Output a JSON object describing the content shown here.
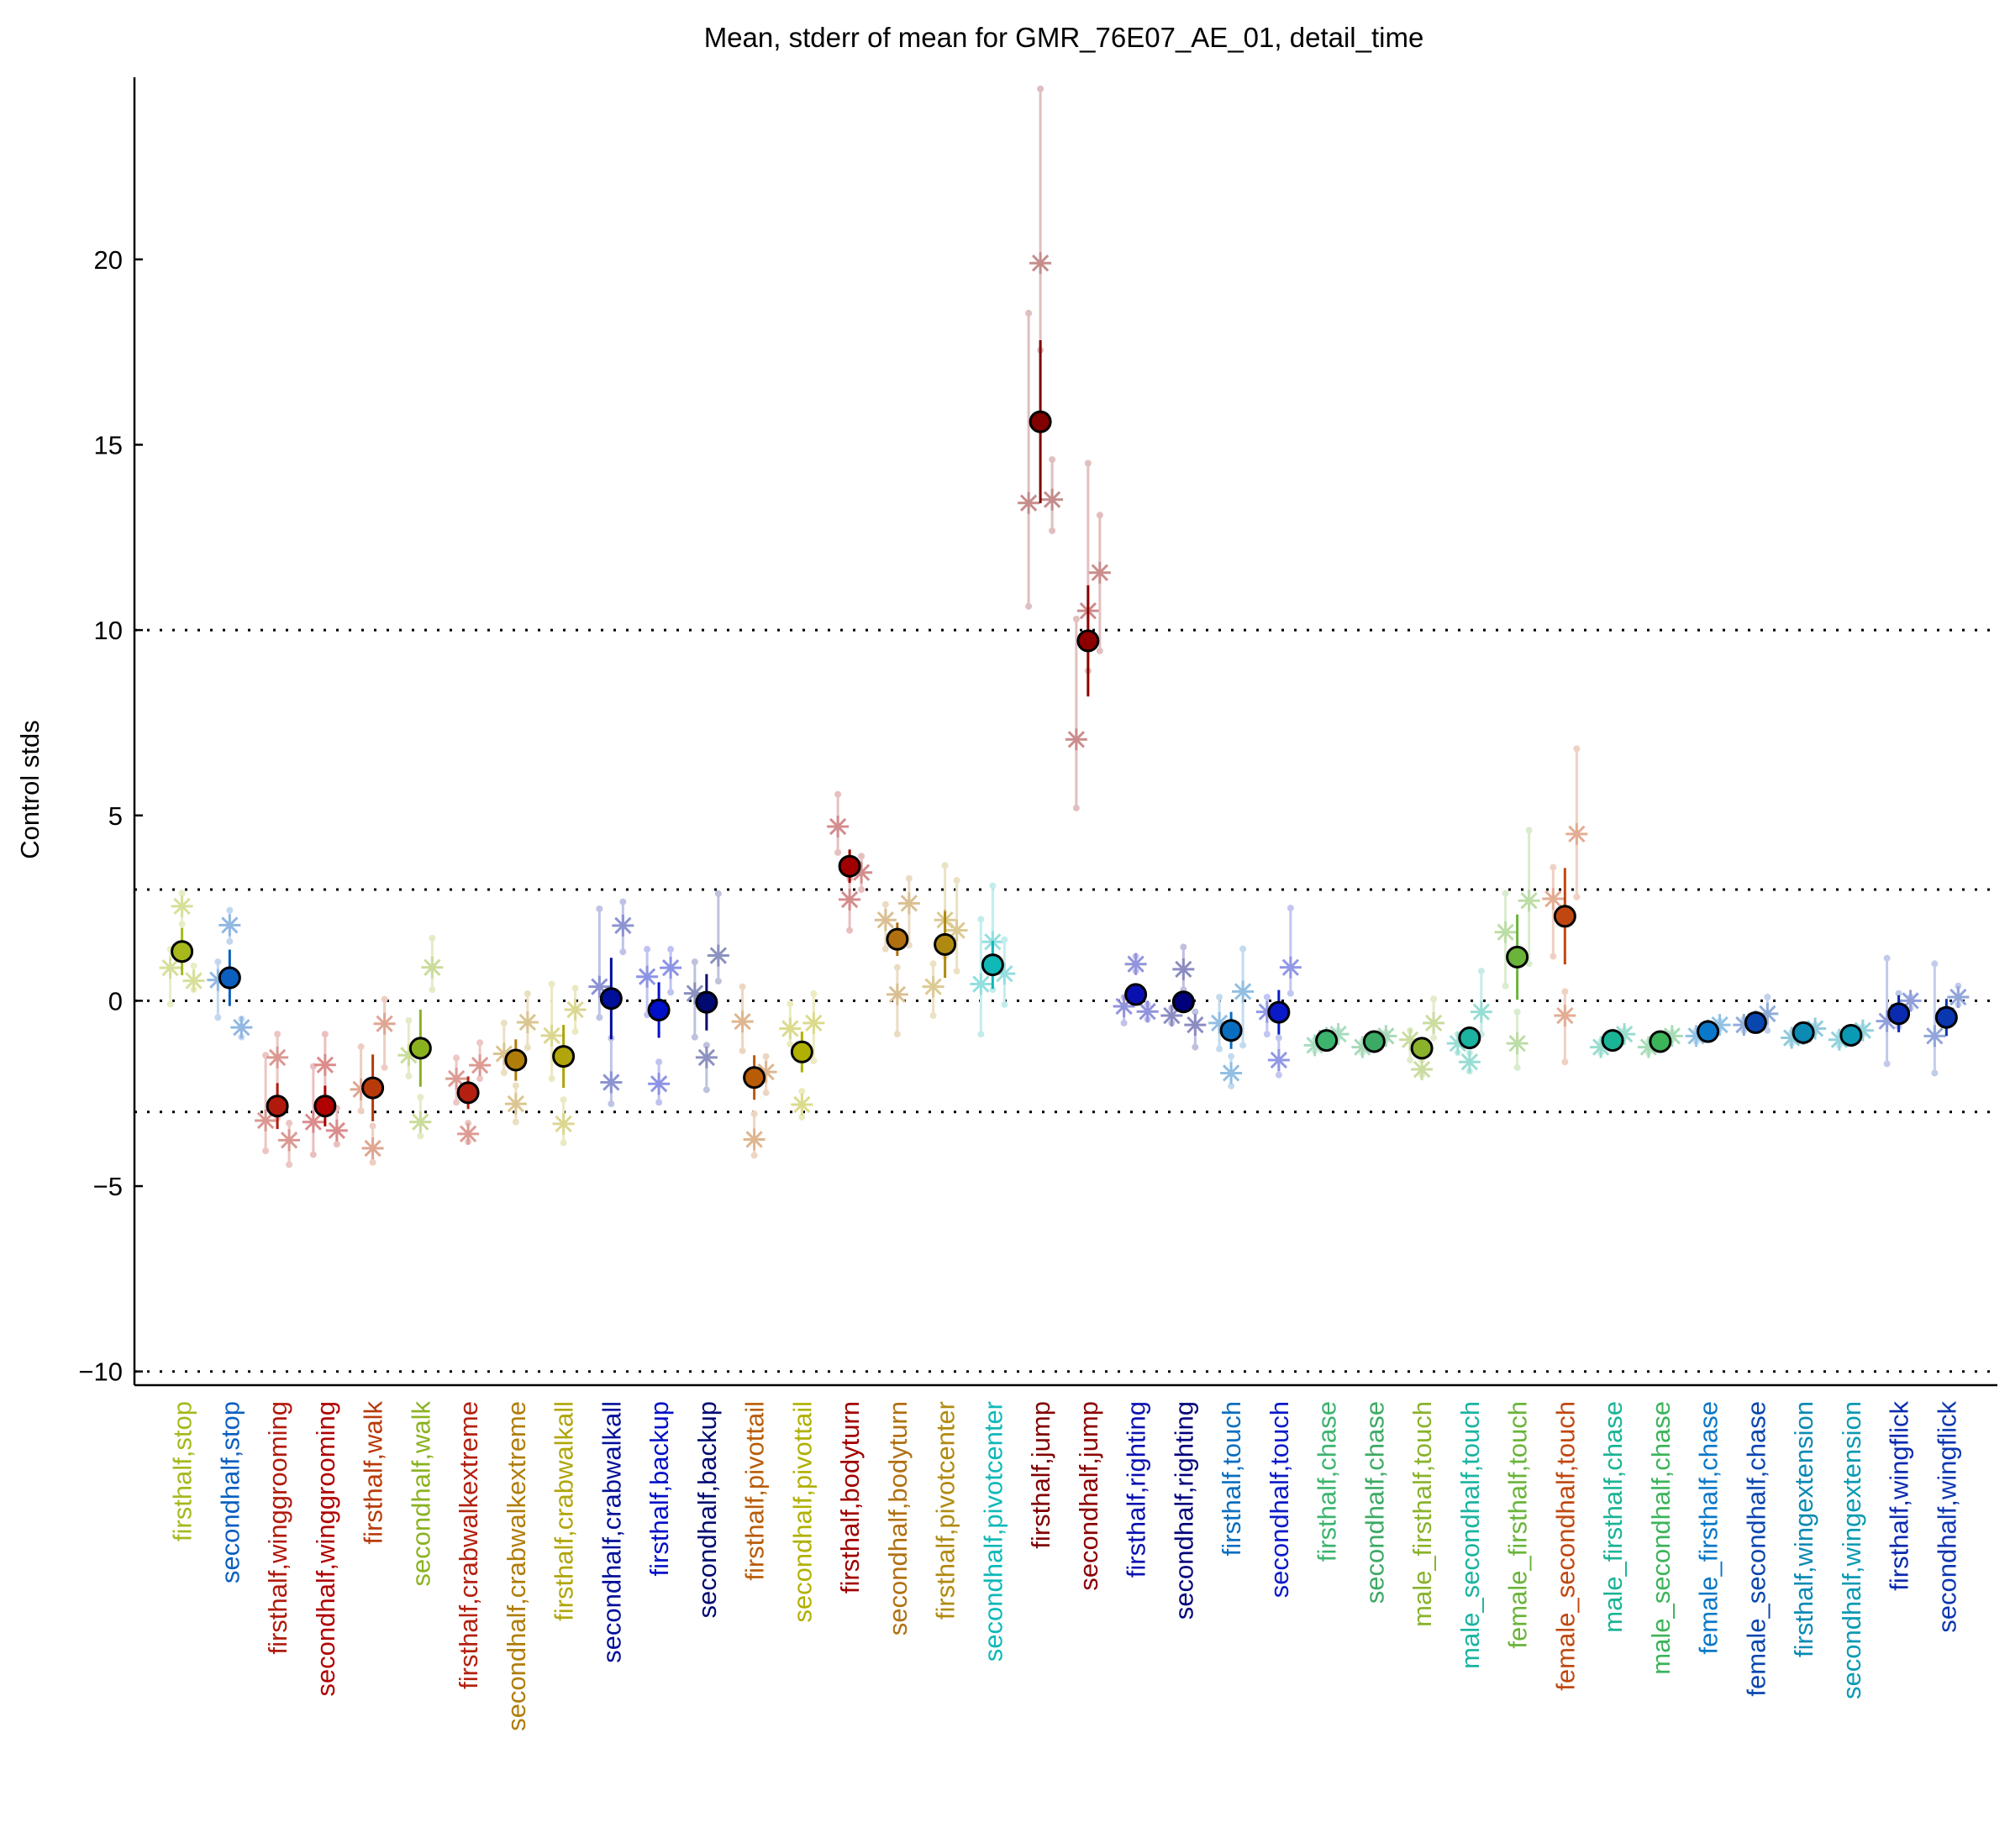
{
  "chart_data": {
    "type": "scatter",
    "title": "Mean, stderr of mean for GMR_76E07_AE_01, detail_time",
    "xlabel": "",
    "ylabel": "Control stds",
    "ylim": [
      -10.4,
      24.9
    ],
    "yticks": [
      -10,
      -5,
      0,
      5,
      10,
      15,
      20
    ],
    "yticklabels": [
      "−10",
      "−5",
      "0",
      "5",
      "10",
      "15",
      "20"
    ],
    "reference_lines": [
      -10,
      -3,
      0,
      3,
      10
    ],
    "grid": false,
    "categories": [
      {
        "label": "firsthalf,stop",
        "color": "#a6b81c",
        "mean": 1.33,
        "err": 0.64,
        "points": [
          [
            0.89,
            -0.09,
            1.39
          ],
          [
            2.55,
            2.07,
            2.9
          ],
          [
            0.54,
            0.3,
            0.94
          ]
        ]
      },
      {
        "label": "secondhalf,stop",
        "color": "#0b5fbf",
        "mean": 0.62,
        "err": 0.76,
        "points": [
          [
            0.56,
            -0.45,
            1.05
          ],
          [
            2.04,
            1.6,
            2.44
          ],
          [
            -0.72,
            -0.98,
            -0.49
          ]
        ]
      },
      {
        "label": "firsthalf,winggrooming",
        "color": "#b01a0c",
        "mean": -2.84,
        "err": 0.62,
        "points": [
          [
            -3.23,
            -4.05,
            -1.47
          ],
          [
            -1.53,
            -3.16,
            -0.9
          ],
          [
            -3.76,
            -4.42,
            -3.3
          ]
        ]
      },
      {
        "label": "secondhalf,winggrooming",
        "color": "#b00000",
        "mean": -2.84,
        "err": 0.55,
        "points": [
          [
            -3.27,
            -4.15,
            -1.77
          ],
          [
            -1.73,
            -2.86,
            -0.9
          ],
          [
            -3.5,
            -3.87,
            -2.9
          ]
        ]
      },
      {
        "label": "firsthalf,walk",
        "color": "#b83a0a",
        "mean": -2.35,
        "err": 0.9,
        "points": [
          [
            -2.39,
            -2.97,
            -1.24
          ],
          [
            -3.98,
            -4.36,
            -3.38
          ],
          [
            -0.62,
            -1.8,
            0.04
          ]
        ]
      },
      {
        "label": "secondhalf,walk",
        "color": "#8ab21f",
        "mean": -1.28,
        "err": 1.04,
        "points": [
          [
            -1.47,
            -2.03,
            -0.53
          ],
          [
            -3.27,
            -3.65,
            -2.6
          ],
          [
            0.9,
            0.3,
            1.69
          ]
        ]
      },
      {
        "label": "firsthalf,crabwalkextreme",
        "color": "#b32010",
        "mean": -2.48,
        "err": 0.44,
        "points": [
          [
            -2.1,
            -2.74,
            -1.54
          ],
          [
            -3.59,
            -3.8,
            -3.3
          ],
          [
            -1.74,
            -2.1,
            -1.13
          ]
        ]
      },
      {
        "label": "secondhalf,crabwalkextreme",
        "color": "#b07d0a",
        "mean": -1.6,
        "err": 0.56,
        "points": [
          [
            -1.43,
            -1.94,
            -0.6
          ],
          [
            -2.78,
            -3.27,
            -2.29
          ],
          [
            -0.58,
            -1.26,
            0.19
          ]
        ]
      },
      {
        "label": "firsthalf,crabwalkall",
        "color": "#b0a50a",
        "mean": -1.5,
        "err": 0.85,
        "points": [
          [
            -0.94,
            -2.1,
            0.45
          ],
          [
            -3.32,
            -3.83,
            -2.67
          ],
          [
            -0.24,
            -0.83,
            0.34
          ]
        ]
      },
      {
        "label": "secondhalf,crabwalkall",
        "color": "#000f99",
        "mean": 0.06,
        "err": 1.1,
        "points": [
          [
            0.38,
            -0.45,
            2.48
          ],
          [
            -2.2,
            -2.78,
            -1.01
          ],
          [
            2.03,
            1.32,
            2.67
          ]
        ]
      },
      {
        "label": "firsthalf,backup",
        "color": "#0010c8",
        "mean": -0.25,
        "err": 0.75,
        "points": [
          [
            0.65,
            -0.38,
            1.39
          ],
          [
            -2.24,
            -2.74,
            -1.65
          ],
          [
            0.89,
            0.23,
            1.39
          ]
        ]
      },
      {
        "label": "secondhalf,backup",
        "color": "#000a70",
        "mean": -0.04,
        "err": 0.76,
        "points": [
          [
            0.2,
            -0.98,
            1.05
          ],
          [
            -1.53,
            -2.4,
            -1.2
          ],
          [
            1.22,
            0.53,
            2.89
          ]
        ]
      },
      {
        "label": "firsthalf,pivottail",
        "color": "#b85c08",
        "mean": -2.07,
        "err": 0.6,
        "points": [
          [
            -0.56,
            -1.35,
            0.38
          ],
          [
            -3.74,
            -4.17,
            -3.05
          ],
          [
            -1.92,
            -2.48,
            -1.5
          ]
        ]
      },
      {
        "label": "secondhalf,pivottail",
        "color": "#b0b000",
        "mean": -1.38,
        "err": 0.55,
        "points": [
          [
            -0.75,
            -1.17,
            -0.08
          ],
          [
            -2.8,
            -3.14,
            -2.44
          ],
          [
            -0.6,
            -1.62,
            0.19
          ]
        ]
      },
      {
        "label": "firsthalf,bodyturn",
        "color": "#a00000",
        "mean": 3.63,
        "err": 0.45,
        "points": [
          [
            4.7,
            4.0,
            5.57
          ],
          [
            2.73,
            1.9,
            3.3
          ],
          [
            3.46,
            3.0,
            3.9
          ]
        ]
      },
      {
        "label": "secondhalf,bodyturn",
        "color": "#b07010",
        "mean": 1.66,
        "err": 0.45,
        "points": [
          [
            2.18,
            1.4,
            2.6
          ],
          [
            0.17,
            -0.9,
            0.9
          ],
          [
            2.63,
            1.5,
            3.3
          ]
        ]
      },
      {
        "label": "firsthalf,pivotcenter",
        "color": "#b08a10",
        "mean": 1.52,
        "err": 0.9,
        "points": [
          [
            0.38,
            -0.4,
            1.0
          ],
          [
            2.18,
            1.2,
            3.65
          ],
          [
            1.9,
            0.8,
            3.25
          ]
        ]
      },
      {
        "label": "secondhalf,pivotcenter",
        "color": "#10b8b8",
        "mean": 0.97,
        "err": 0.65,
        "points": [
          [
            0.45,
            -0.9,
            2.2
          ],
          [
            1.59,
            0.3,
            3.1
          ],
          [
            0.73,
            -0.1,
            1.65
          ]
        ]
      },
      {
        "label": "firsthalf,jump",
        "color": "#800000",
        "mean": 15.62,
        "err": 2.2,
        "points": [
          [
            13.43,
            10.64,
            18.55
          ],
          [
            19.9,
            17.55,
            24.6
          ],
          [
            13.52,
            12.68,
            14.6
          ]
        ]
      },
      {
        "label": "secondhalf,jump",
        "color": "#8c0000",
        "mean": 9.71,
        "err": 1.5,
        "points": [
          [
            7.05,
            5.2,
            10.3
          ],
          [
            10.52,
            8.9,
            14.5
          ],
          [
            11.55,
            9.44,
            13.1
          ]
        ]
      },
      {
        "label": "firsthalf,righting",
        "color": "#0a10b0",
        "mean": 0.17,
        "err": 0.15,
        "points": [
          [
            -0.15,
            -0.6,
            0.1
          ],
          [
            0.99,
            0.8,
            1.2
          ],
          [
            -0.29,
            -0.5,
            -0.1
          ]
        ]
      },
      {
        "label": "secondhalf,righting",
        "color": "#00007a",
        "mean": -0.03,
        "err": 0.15,
        "points": [
          [
            -0.4,
            -0.6,
            -0.2
          ],
          [
            0.85,
            0.3,
            1.45
          ],
          [
            -0.65,
            -1.25,
            -0.3
          ]
        ]
      },
      {
        "label": "firsthalf,touch",
        "color": "#0a6ec0",
        "mean": -0.8,
        "err": 0.5,
        "points": [
          [
            -0.6,
            -1.3,
            0.1
          ],
          [
            -1.95,
            -2.3,
            -1.5
          ],
          [
            0.25,
            -1.2,
            1.4
          ]
        ]
      },
      {
        "label": "secondhalf,touch",
        "color": "#0a1ac8",
        "mean": -0.31,
        "err": 0.6,
        "points": [
          [
            -0.3,
            -0.9,
            0.1
          ],
          [
            -1.6,
            -2.0,
            -1.0
          ],
          [
            0.9,
            0.2,
            2.5
          ]
        ]
      },
      {
        "label": "firsthalf,chase",
        "color": "#3cb46e",
        "mean": -1.07,
        "err": 0.05,
        "points": [
          [
            -1.2,
            -1.35,
            -1.05
          ],
          [
            -1.0,
            -1.1,
            -0.9
          ],
          [
            -0.9,
            -1.0,
            -0.8
          ]
        ]
      },
      {
        "label": "secondhalf,chase",
        "color": "#3caa64",
        "mean": -1.1,
        "err": 0.05,
        "points": [
          [
            -1.25,
            -1.4,
            -1.1
          ],
          [
            -1.1,
            -1.2,
            -1.0
          ],
          [
            -0.95,
            -1.05,
            -0.85
          ]
        ]
      },
      {
        "label": "male_firsthalf,touch",
        "color": "#8ab22a",
        "mean": -1.28,
        "err": 0.1,
        "points": [
          [
            -1.05,
            -1.6,
            -0.8
          ],
          [
            -1.85,
            -2.0,
            -1.6
          ],
          [
            -0.6,
            -1.0,
            0.05
          ]
        ]
      },
      {
        "label": "male_secondhalf,touch",
        "color": "#1ab4a0",
        "mean": -1.0,
        "err": 0.1,
        "points": [
          [
            -1.15,
            -1.4,
            -0.9
          ],
          [
            -1.65,
            -1.9,
            -1.4
          ],
          [
            -0.3,
            -0.9,
            0.8
          ]
        ]
      },
      {
        "label": "female_firsthalf,touch",
        "color": "#6ab43a",
        "mean": 1.18,
        "err": 1.15,
        "points": [
          [
            1.85,
            0.4,
            2.9
          ],
          [
            -1.15,
            -1.8,
            -0.3
          ],
          [
            2.7,
            1.0,
            4.6
          ]
        ]
      },
      {
        "label": "female_secondhalf,touch",
        "color": "#c04810",
        "mean": 2.28,
        "err": 1.3,
        "points": [
          [
            2.75,
            1.2,
            3.6
          ],
          [
            -0.4,
            -1.65,
            0.25
          ],
          [
            4.5,
            2.8,
            6.8
          ]
        ]
      },
      {
        "label": "male_firsthalf,chase",
        "color": "#1ab496",
        "mean": -1.07,
        "err": 0.05,
        "points": [
          [
            -1.25,
            -1.4,
            -1.1
          ],
          [
            -1.05,
            -1.15,
            -0.95
          ],
          [
            -0.9,
            -1.0,
            -0.8
          ]
        ]
      },
      {
        "label": "male_secondhalf,chase",
        "color": "#3cb45a",
        "mean": -1.1,
        "err": 0.05,
        "points": [
          [
            -1.25,
            -1.4,
            -1.1
          ],
          [
            -1.1,
            -1.2,
            -1.0
          ],
          [
            -0.95,
            -1.05,
            -0.85
          ]
        ]
      },
      {
        "label": "female_firsthalf,chase",
        "color": "#0a78c8",
        "mean": -0.83,
        "err": 0.05,
        "points": [
          [
            -0.95,
            -1.1,
            -0.8
          ],
          [
            -0.8,
            -0.9,
            -0.7
          ],
          [
            -0.65,
            -0.75,
            -0.55
          ]
        ]
      },
      {
        "label": "female_secondhalf,chase",
        "color": "#0a46b0",
        "mean": -0.59,
        "err": 0.05,
        "points": [
          [
            -0.65,
            -0.8,
            -0.5
          ],
          [
            -0.55,
            -0.65,
            -0.45
          ],
          [
            -0.35,
            -0.8,
            0.1
          ]
        ]
      },
      {
        "label": "firsthalf,wingextension",
        "color": "#0a8ab4",
        "mean": -0.86,
        "err": 0.05,
        "points": [
          [
            -1.0,
            -1.15,
            -0.85
          ],
          [
            -0.9,
            -1.0,
            -0.8
          ],
          [
            -0.75,
            -0.85,
            -0.65
          ]
        ]
      },
      {
        "label": "secondhalf,wingextension",
        "color": "#0a9ab4",
        "mean": -0.93,
        "err": 0.05,
        "points": [
          [
            -1.05,
            -1.2,
            -0.9
          ],
          [
            -0.95,
            -1.05,
            -0.85
          ],
          [
            -0.8,
            -0.9,
            -0.7
          ]
        ]
      },
      {
        "label": "firsthalf,wingflick",
        "color": "#0a2ab0",
        "mean": -0.35,
        "err": 0.5,
        "points": [
          [
            -0.55,
            -1.7,
            1.15
          ],
          [
            -0.3,
            -0.7,
            0.2
          ],
          [
            0.0,
            -0.2,
            0.1
          ]
        ]
      },
      {
        "label": "secondhalf,wingflick",
        "color": "#0a36b0",
        "mean": -0.45,
        "err": 0.5,
        "points": [
          [
            -0.95,
            -1.95,
            1.0
          ],
          [
            -0.4,
            -0.6,
            -0.2
          ],
          [
            0.1,
            -0.1,
            0.4
          ]
        ]
      }
    ]
  }
}
